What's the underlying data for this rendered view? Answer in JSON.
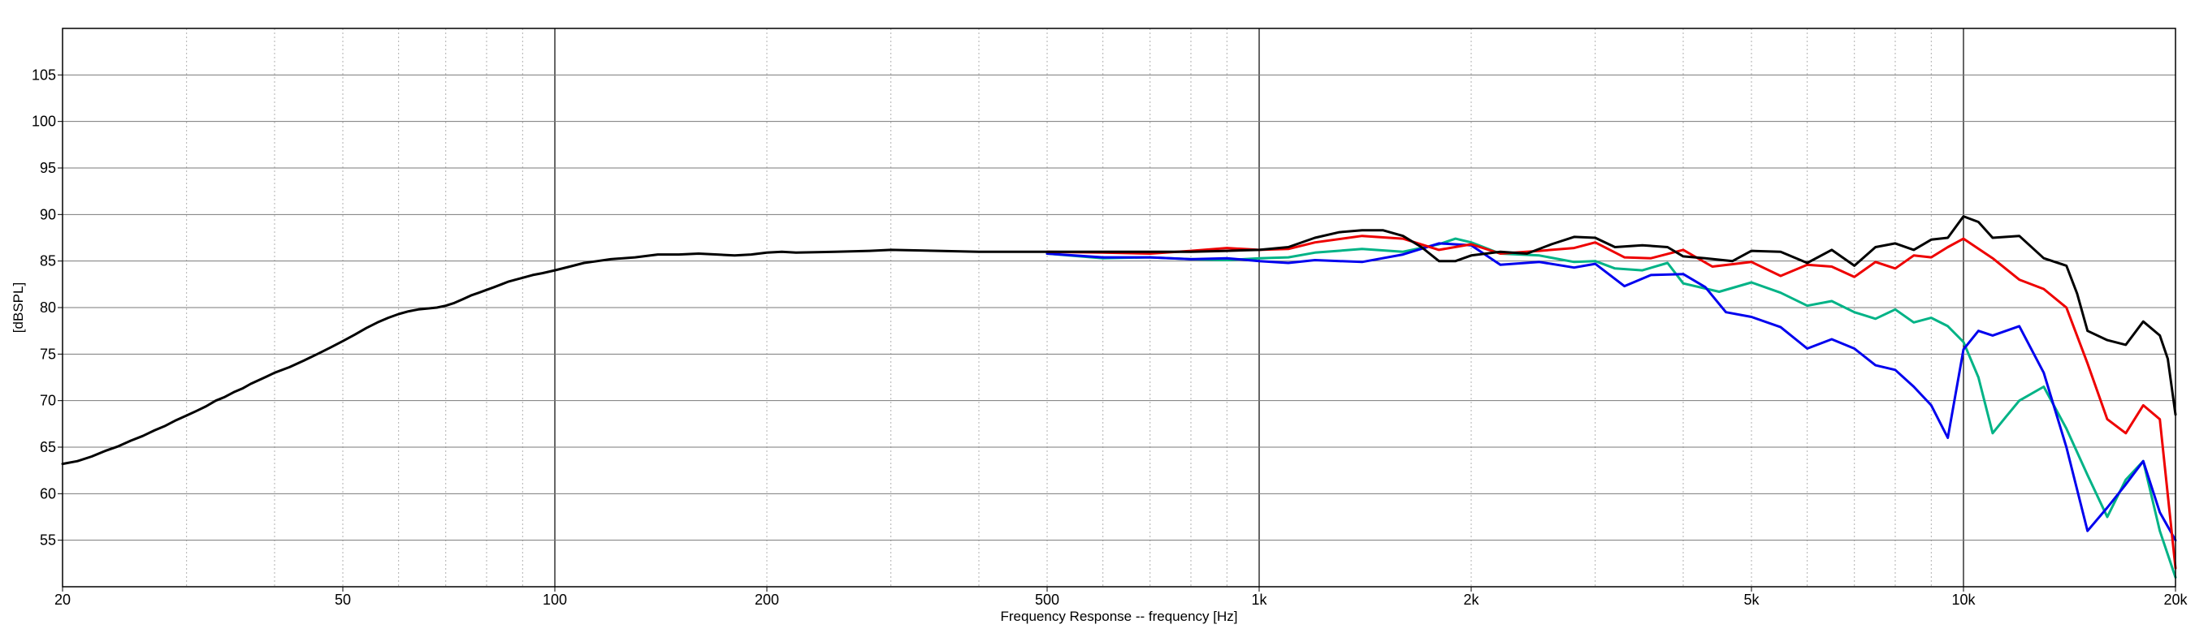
{
  "chart_data": {
    "type": "line",
    "title": "",
    "xlabel": "Frequency Response -- frequency [Hz]",
    "ylabel": "[dBSPL]",
    "x_scale": "log",
    "xlim": [
      20,
      20000
    ],
    "ylim": [
      50,
      110
    ],
    "grid": true,
    "legend": "none",
    "y_ticks": [
      55,
      60,
      65,
      70,
      75,
      80,
      85,
      90,
      95,
      100,
      105
    ],
    "x_ticks": [
      {
        "value": 20,
        "label": "20"
      },
      {
        "value": 50,
        "label": "50"
      },
      {
        "value": 100,
        "label": "100"
      },
      {
        "value": 200,
        "label": "200"
      },
      {
        "value": 500,
        "label": "500"
      },
      {
        "value": 1000,
        "label": "1k"
      },
      {
        "value": 2000,
        "label": "2k"
      },
      {
        "value": 5000,
        "label": "5k"
      },
      {
        "value": 10000,
        "label": "10k"
      },
      {
        "value": 20000,
        "label": "20k"
      }
    ],
    "series": [
      {
        "color": "#00b386",
        "points": [
          [
            500,
            85.8
          ],
          [
            600,
            85.3
          ],
          [
            700,
            85.4
          ],
          [
            800,
            85.2
          ],
          [
            900,
            85.1
          ],
          [
            1000,
            85.3
          ],
          [
            1100,
            85.4
          ],
          [
            1200,
            85.9
          ],
          [
            1400,
            86.3
          ],
          [
            1600,
            86.0
          ],
          [
            1800,
            86.8
          ],
          [
            1900,
            87.4
          ],
          [
            2000,
            87.0
          ],
          [
            2200,
            85.8
          ],
          [
            2500,
            85.6
          ],
          [
            2800,
            84.9
          ],
          [
            3000,
            85.0
          ],
          [
            3200,
            84.2
          ],
          [
            3500,
            84.0
          ],
          [
            3800,
            84.8
          ],
          [
            4000,
            82.6
          ],
          [
            4500,
            81.7
          ],
          [
            5000,
            82.7
          ],
          [
            5500,
            81.6
          ],
          [
            6000,
            80.2
          ],
          [
            6500,
            80.7
          ],
          [
            7000,
            79.5
          ],
          [
            7500,
            78.8
          ],
          [
            8000,
            79.8
          ],
          [
            8500,
            78.4
          ],
          [
            9000,
            78.9
          ],
          [
            9500,
            78.0
          ],
          [
            10000,
            76.3
          ],
          [
            10500,
            72.5
          ],
          [
            11000,
            66.5
          ],
          [
            11500,
            68.3
          ],
          [
            12000,
            70.0
          ],
          [
            13000,
            71.5
          ],
          [
            14000,
            67.0
          ],
          [
            15000,
            62.0
          ],
          [
            16000,
            57.5
          ],
          [
            17000,
            61.5
          ],
          [
            18000,
            63.5
          ],
          [
            19000,
            56.0
          ],
          [
            20000,
            51.0
          ]
        ]
      },
      {
        "color": "#0000ee",
        "points": [
          [
            500,
            85.8
          ],
          [
            600,
            85.4
          ],
          [
            700,
            85.4
          ],
          [
            800,
            85.2
          ],
          [
            900,
            85.3
          ],
          [
            1000,
            85.0
          ],
          [
            1100,
            84.8
          ],
          [
            1200,
            85.1
          ],
          [
            1400,
            84.9
          ],
          [
            1600,
            85.7
          ],
          [
            1800,
            86.9
          ],
          [
            2000,
            86.7
          ],
          [
            2200,
            84.6
          ],
          [
            2500,
            84.9
          ],
          [
            2800,
            84.3
          ],
          [
            3000,
            84.7
          ],
          [
            3300,
            82.3
          ],
          [
            3600,
            83.5
          ],
          [
            4000,
            83.6
          ],
          [
            4300,
            82.2
          ],
          [
            4600,
            79.5
          ],
          [
            5000,
            79.0
          ],
          [
            5500,
            77.9
          ],
          [
            6000,
            75.6
          ],
          [
            6500,
            76.6
          ],
          [
            7000,
            75.6
          ],
          [
            7500,
            73.8
          ],
          [
            8000,
            73.3
          ],
          [
            8500,
            71.5
          ],
          [
            9000,
            69.5
          ],
          [
            9500,
            66.0
          ],
          [
            10000,
            75.5
          ],
          [
            10500,
            77.5
          ],
          [
            11000,
            77.0
          ],
          [
            12000,
            78.0
          ],
          [
            13000,
            73.0
          ],
          [
            14000,
            65.0
          ],
          [
            15000,
            56.0
          ],
          [
            16000,
            58.5
          ],
          [
            17000,
            61.0
          ],
          [
            18000,
            63.5
          ],
          [
            19000,
            58.0
          ],
          [
            20000,
            55.0
          ]
        ]
      },
      {
        "color": "#ee0000",
        "points": [
          [
            500,
            86.0
          ],
          [
            600,
            85.9
          ],
          [
            700,
            85.8
          ],
          [
            800,
            86.1
          ],
          [
            900,
            86.4
          ],
          [
            1000,
            86.2
          ],
          [
            1100,
            86.3
          ],
          [
            1200,
            87.0
          ],
          [
            1400,
            87.7
          ],
          [
            1600,
            87.4
          ],
          [
            1800,
            86.2
          ],
          [
            2000,
            86.8
          ],
          [
            2200,
            85.8
          ],
          [
            2500,
            86.1
          ],
          [
            2800,
            86.4
          ],
          [
            3000,
            87.0
          ],
          [
            3300,
            85.4
          ],
          [
            3600,
            85.3
          ],
          [
            4000,
            86.2
          ],
          [
            4400,
            84.4
          ],
          [
            5000,
            84.9
          ],
          [
            5500,
            83.4
          ],
          [
            6000,
            84.6
          ],
          [
            6500,
            84.4
          ],
          [
            7000,
            83.3
          ],
          [
            7500,
            84.9
          ],
          [
            8000,
            84.2
          ],
          [
            8500,
            85.6
          ],
          [
            9000,
            85.4
          ],
          [
            9500,
            86.5
          ],
          [
            10000,
            87.4
          ],
          [
            11000,
            85.3
          ],
          [
            12000,
            83.0
          ],
          [
            13000,
            82.0
          ],
          [
            14000,
            80.0
          ],
          [
            15000,
            74.0
          ],
          [
            16000,
            68.0
          ],
          [
            17000,
            66.5
          ],
          [
            18000,
            69.5
          ],
          [
            19000,
            68.0
          ],
          [
            20000,
            52.0
          ]
        ]
      },
      {
        "color": "#000000",
        "points": [
          [
            20,
            63.2
          ],
          [
            21,
            63.5
          ],
          [
            22,
            64.0
          ],
          [
            23,
            64.6
          ],
          [
            24,
            65.1
          ],
          [
            25,
            65.7
          ],
          [
            26,
            66.2
          ],
          [
            27,
            66.8
          ],
          [
            28,
            67.3
          ],
          [
            29,
            67.9
          ],
          [
            30,
            68.4
          ],
          [
            31,
            68.9
          ],
          [
            32,
            69.4
          ],
          [
            33,
            70.0
          ],
          [
            34,
            70.4
          ],
          [
            35,
            70.9
          ],
          [
            36,
            71.3
          ],
          [
            37,
            71.8
          ],
          [
            38,
            72.2
          ],
          [
            39,
            72.6
          ],
          [
            40,
            73.0
          ],
          [
            42,
            73.6
          ],
          [
            44,
            74.3
          ],
          [
            46,
            75.0
          ],
          [
            48,
            75.7
          ],
          [
            50,
            76.4
          ],
          [
            52,
            77.1
          ],
          [
            54,
            77.8
          ],
          [
            56,
            78.4
          ],
          [
            58,
            78.9
          ],
          [
            60,
            79.3
          ],
          [
            62,
            79.6
          ],
          [
            64,
            79.8
          ],
          [
            66,
            79.9
          ],
          [
            68,
            80.0
          ],
          [
            70,
            80.2
          ],
          [
            72,
            80.5
          ],
          [
            74,
            80.9
          ],
          [
            76,
            81.3
          ],
          [
            78,
            81.6
          ],
          [
            80,
            81.9
          ],
          [
            82,
            82.2
          ],
          [
            84,
            82.5
          ],
          [
            86,
            82.8
          ],
          [
            88,
            83.0
          ],
          [
            90,
            83.2
          ],
          [
            93,
            83.5
          ],
          [
            96,
            83.7
          ],
          [
            100,
            84.0
          ],
          [
            105,
            84.4
          ],
          [
            110,
            84.8
          ],
          [
            115,
            85.0
          ],
          [
            120,
            85.2
          ],
          [
            130,
            85.4
          ],
          [
            140,
            85.7
          ],
          [
            150,
            85.7
          ],
          [
            160,
            85.8
          ],
          [
            170,
            85.7
          ],
          [
            180,
            85.6
          ],
          [
            190,
            85.7
          ],
          [
            200,
            85.9
          ],
          [
            210,
            86.0
          ],
          [
            220,
            85.9
          ],
          [
            250,
            86.0
          ],
          [
            280,
            86.1
          ],
          [
            300,
            86.2
          ],
          [
            350,
            86.1
          ],
          [
            400,
            86.0
          ],
          [
            450,
            86.0
          ],
          [
            500,
            86.0
          ],
          [
            550,
            86.0
          ],
          [
            600,
            86.0
          ],
          [
            700,
            86.0
          ],
          [
            800,
            86.0
          ],
          [
            900,
            86.1
          ],
          [
            1000,
            86.2
          ],
          [
            1100,
            86.5
          ],
          [
            1200,
            87.5
          ],
          [
            1300,
            88.1
          ],
          [
            1400,
            88.3
          ],
          [
            1500,
            88.3
          ],
          [
            1600,
            87.7
          ],
          [
            1700,
            86.5
          ],
          [
            1800,
            85.0
          ],
          [
            1900,
            85.0
          ],
          [
            2000,
            85.6
          ],
          [
            2200,
            86.0
          ],
          [
            2400,
            85.8
          ],
          [
            2600,
            86.8
          ],
          [
            2800,
            87.6
          ],
          [
            3000,
            87.5
          ],
          [
            3200,
            86.5
          ],
          [
            3500,
            86.7
          ],
          [
            3800,
            86.5
          ],
          [
            4000,
            85.5
          ],
          [
            4300,
            85.3
          ],
          [
            4700,
            85.0
          ],
          [
            5000,
            86.1
          ],
          [
            5500,
            86.0
          ],
          [
            6000,
            84.8
          ],
          [
            6500,
            86.2
          ],
          [
            7000,
            84.5
          ],
          [
            7500,
            86.5
          ],
          [
            8000,
            86.9
          ],
          [
            8500,
            86.2
          ],
          [
            9000,
            87.3
          ],
          [
            9500,
            87.5
          ],
          [
            10000,
            89.8
          ],
          [
            10500,
            89.2
          ],
          [
            11000,
            87.5
          ],
          [
            12000,
            87.7
          ],
          [
            13000,
            85.3
          ],
          [
            14000,
            84.5
          ],
          [
            14500,
            81.5
          ],
          [
            15000,
            77.5
          ],
          [
            16000,
            76.5
          ],
          [
            17000,
            76.0
          ],
          [
            18000,
            78.5
          ],
          [
            19000,
            77.0
          ],
          [
            19500,
            74.5
          ],
          [
            20000,
            68.5
          ]
        ]
      }
    ]
  }
}
